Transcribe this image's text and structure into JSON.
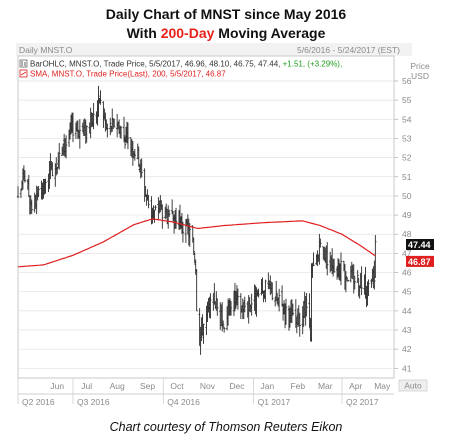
{
  "header": {
    "title_line1": "Daily Chart of MNST since May 2016",
    "title_line2_pre": "With ",
    "title_line2_hl": "200-Day",
    "title_line2_post": " Moving Average"
  },
  "chart_top": {
    "instrument": "Daily MNST.O",
    "date_range": "5/6/2016 - 5/24/2017 (EST)",
    "price_label": "Price",
    "currency_label": "USD",
    "auto_label": "Auto"
  },
  "legend": {
    "bar_icon": "bar-ohlc-icon",
    "bar_prefix": "BarOHLC, MNST.O, Trade Price, 5/5/2017, 46.96, 48.10, 46.75, 47.44, ",
    "bar_change": "+1.51, (+3.29%),",
    "sma_prefix": "SMA, MNST.O, Trade Price(Last),",
    "sma_period": "200,",
    "sma_suffix": "5/5/2017, 46.87"
  },
  "footer": "Chart courtesy of Thomson Reuters Eikon",
  "colors": {
    "bar": "#2a2a2a",
    "sma": "#e01f1f",
    "change_green": "#1e9e1e",
    "last_price_tag": "#111111",
    "sma_tag": "#e01f1f",
    "grid": "#e2e2e2"
  },
  "chart_data": {
    "type": "ohlc",
    "title": "Daily Chart of MNST since May 2016",
    "subtitle": "With 200-Day Moving Average",
    "ylim": [
      40.6,
      57.2
    ],
    "yticks": [
      41,
      42,
      43,
      44,
      45,
      46,
      47,
      48,
      49,
      50,
      51,
      52,
      53,
      54,
      55,
      56
    ],
    "grid": true,
    "xticks_month": [
      "Jun",
      "Jul",
      "Aug",
      "Sep",
      "Oct",
      "Nov",
      "Dec",
      "Jan",
      "Feb",
      "Mar",
      "Apr",
      "May"
    ],
    "xticks_quarter": [
      "Q2 2016",
      "Q3 2016",
      "Q4 2016",
      "Q1 2017",
      "Q2 2017"
    ],
    "last_price": "47.44",
    "sma_last": "46.87",
    "price_anchors": [
      [
        "2016-05-06",
        49.6
      ],
      [
        "2016-05-12",
        51.2
      ],
      [
        "2016-05-20",
        49.5
      ],
      [
        "2016-06-01",
        50.2
      ],
      [
        "2016-06-10",
        51.5
      ],
      [
        "2016-06-20",
        52.3
      ],
      [
        "2016-07-01",
        53.6
      ],
      [
        "2016-07-10",
        53.4
      ],
      [
        "2016-07-20",
        53.8
      ],
      [
        "2016-07-28",
        55.0
      ],
      [
        "2016-08-05",
        53.5
      ],
      [
        "2016-08-15",
        53.9
      ],
      [
        "2016-08-25",
        52.9
      ],
      [
        "2016-09-05",
        52.2
      ],
      [
        "2016-09-12",
        50.3
      ],
      [
        "2016-09-20",
        49.0
      ],
      [
        "2016-09-28",
        49.5
      ],
      [
        "2016-10-06",
        48.6
      ],
      [
        "2016-10-14",
        48.9
      ],
      [
        "2016-10-22",
        48.3
      ],
      [
        "2016-10-30",
        48.0
      ],
      [
        "2016-11-03",
        46.4
      ],
      [
        "2016-11-05",
        42.4
      ],
      [
        "2016-11-12",
        43.5
      ],
      [
        "2016-11-22",
        44.6
      ],
      [
        "2016-12-01",
        43.3
      ],
      [
        "2016-12-10",
        44.7
      ],
      [
        "2016-12-20",
        44.2
      ],
      [
        "2017-01-03",
        44.6
      ],
      [
        "2017-01-15",
        45.3
      ],
      [
        "2017-01-25",
        44.6
      ],
      [
        "2017-02-05",
        43.8
      ],
      [
        "2017-02-15",
        43.3
      ],
      [
        "2017-02-24",
        44.3
      ],
      [
        "2017-02-28",
        42.3
      ],
      [
        "2017-03-01",
        45.9
      ],
      [
        "2017-03-10",
        47.3
      ],
      [
        "2017-03-20",
        46.6
      ],
      [
        "2017-03-30",
        46.2
      ],
      [
        "2017-04-10",
        45.8
      ],
      [
        "2017-04-20",
        45.6
      ],
      [
        "2017-04-28",
        45.0
      ],
      [
        "2017-05-04",
        45.9
      ],
      [
        "2017-05-05",
        47.44
      ]
    ],
    "sma_anchors": [
      [
        "2016-05-06",
        46.3
      ],
      [
        "2016-06-01",
        46.4
      ],
      [
        "2016-07-01",
        46.9
      ],
      [
        "2016-08-01",
        47.6
      ],
      [
        "2016-09-01",
        48.5
      ],
      [
        "2016-09-20",
        48.8
      ],
      [
        "2016-10-10",
        48.65
      ],
      [
        "2016-11-05",
        48.3
      ],
      [
        "2016-12-01",
        48.45
      ],
      [
        "2017-01-10",
        48.6
      ],
      [
        "2017-02-20",
        48.7
      ],
      [
        "2017-03-10",
        48.45
      ],
      [
        "2017-04-01",
        48.0
      ],
      [
        "2017-04-20",
        47.4
      ],
      [
        "2017-05-05",
        46.87
      ]
    ]
  }
}
